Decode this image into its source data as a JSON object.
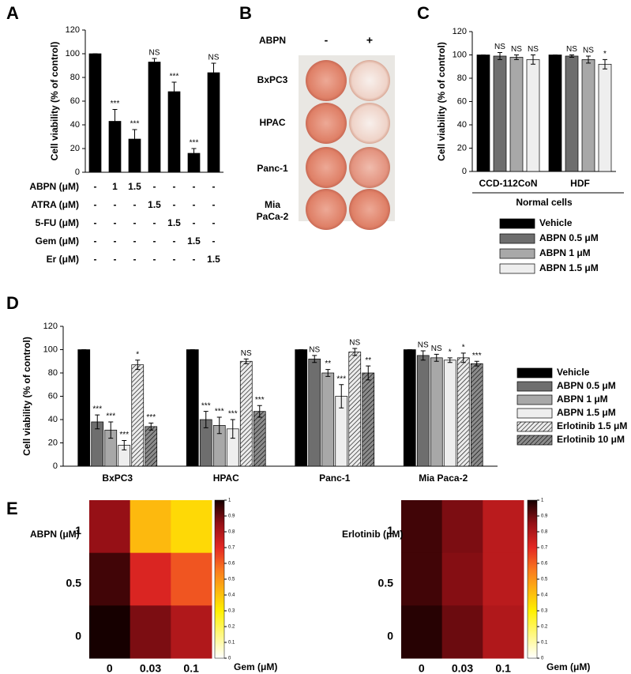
{
  "panel_labels": [
    "A",
    "B",
    "C",
    "D",
    "E"
  ],
  "panel_b": {
    "treatment_label": "ABPN",
    "columns": [
      "-",
      "+"
    ],
    "rows": [
      "BxPC3",
      "HPAC",
      "Panc-1",
      "Mia PaCa-2"
    ]
  },
  "chart_data": [
    {
      "type": "bar",
      "ylabel": "Cell viability (% of control)",
      "categories": [
        null,
        null,
        null,
        null,
        null,
        null,
        null
      ],
      "values": [
        100,
        43,
        28,
        93,
        68,
        16,
        84
      ],
      "errors": [
        0,
        10,
        8,
        3,
        8,
        4,
        8
      ],
      "annotations": [
        null,
        "***",
        "***",
        "NS",
        "***",
        "***",
        "NS"
      ],
      "color": "#000000",
      "ylim": [
        0,
        120
      ],
      "yticks": [
        0,
        20,
        40,
        60,
        80,
        100,
        120
      ],
      "treatments": [
        {
          "label": "ABPN (μM)",
          "doses": [
            "-",
            "1",
            "1.5",
            "-",
            "-",
            "-",
            "-"
          ]
        },
        {
          "label": "ATRA (μM)",
          "doses": [
            "-",
            "-",
            "-",
            "1.5",
            "-",
            "-",
            "-"
          ]
        },
        {
          "label": "5-FU (μM)",
          "doses": [
            "-",
            "-",
            "-",
            "-",
            "1.5",
            "-",
            "-"
          ]
        },
        {
          "label": "Gem (μM)",
          "doses": [
            "-",
            "-",
            "-",
            "-",
            "-",
            "1.5",
            "-"
          ]
        },
        {
          "label": "Er (μM)",
          "doses": [
            "-",
            "-",
            "-",
            "-",
            "-",
            "-",
            "1.5"
          ]
        }
      ]
    },
    {
      "type": "bar",
      "ylabel": "Cell viability (% of control)",
      "categories": [
        "CCD-112CoN",
        "HDF"
      ],
      "group_label": "Normal cells",
      "ylim": [
        0,
        120
      ],
      "yticks": [
        0,
        20,
        40,
        60,
        80,
        100,
        120
      ],
      "legend": "bottom",
      "series": [
        {
          "name": "Vehicle",
          "color": "#000000",
          "values": [
            100,
            100
          ],
          "errors": [
            0,
            0
          ],
          "annotations": [
            null,
            null
          ]
        },
        {
          "name": "ABPN 0.5 μM",
          "color": "#6e6e6e",
          "values": [
            99,
            99
          ],
          "errors": [
            3,
            1
          ],
          "annotations": [
            "NS",
            "NS"
          ]
        },
        {
          "name": "ABPN 1 μM",
          "color": "#a8a8a8",
          "values": [
            98,
            96
          ],
          "errors": [
            2,
            3
          ],
          "annotations": [
            "NS",
            "NS"
          ]
        },
        {
          "name": "ABPN 1.5 μM",
          "color": "#eeeeee",
          "values": [
            96,
            92
          ],
          "errors": [
            4,
            4
          ],
          "annotations": [
            "NS",
            "*"
          ]
        }
      ]
    },
    {
      "type": "bar",
      "ylabel": "Cell viability (% of control)",
      "categories": [
        "BxPC3",
        "HPAC",
        "Panc-1",
        "Mia Paca-2"
      ],
      "ylim": [
        0,
        120
      ],
      "yticks": [
        0,
        20,
        40,
        60,
        80,
        100,
        120
      ],
      "legend": "right",
      "series": [
        {
          "name": "Vehicle",
          "color": "#000000",
          "values": [
            100,
            100,
            100,
            100
          ],
          "errors": [
            0,
            0,
            0,
            0
          ],
          "annotations": [
            null,
            null,
            null,
            null
          ]
        },
        {
          "name": "ABPN 0.5 μM",
          "color": "#6e6e6e",
          "values": [
            38,
            40,
            92,
            95
          ],
          "errors": [
            6,
            7,
            3,
            4
          ],
          "annotations": [
            "***",
            "***",
            "NS",
            "NS"
          ]
        },
        {
          "name": "ABPN 1 μM",
          "color": "#a8a8a8",
          "values": [
            31,
            35,
            80,
            93
          ],
          "errors": [
            7,
            7,
            3,
            3
          ],
          "annotations": [
            "***",
            "***",
            "**",
            "NS"
          ]
        },
        {
          "name": "ABPN 1.5 μM",
          "color": "#eeeeee",
          "values": [
            18,
            32,
            60,
            91
          ],
          "errors": [
            4,
            8,
            10,
            2
          ],
          "annotations": [
            "***",
            "***",
            "***",
            "*"
          ]
        },
        {
          "name": "Erlotinib 1.5 μM",
          "color": "#ececec",
          "pattern": "hatch",
          "values": [
            87,
            90,
            98,
            93
          ],
          "errors": [
            4,
            2,
            3,
            4
          ],
          "annotations": [
            "*",
            "NS",
            "NS",
            "*"
          ]
        },
        {
          "name": "Erlotinib 10 μM",
          "color": "#8c8c8c",
          "pattern": "hatch",
          "values": [
            34,
            47,
            80,
            88
          ],
          "errors": [
            3,
            5,
            6,
            2
          ],
          "annotations": [
            "***",
            "***",
            "**",
            "***"
          ]
        }
      ]
    },
    {
      "type": "heatmap",
      "ylabel": "ABPN (μM)",
      "xlabel": "Gem (μM)",
      "x": [
        "0",
        "0.03",
        "0.1"
      ],
      "y": [
        "1",
        "0.5",
        "0"
      ],
      "values": [
        [
          0.85,
          0.42,
          0.35
        ],
        [
          0.95,
          0.72,
          0.62
        ],
        [
          1.0,
          0.88,
          0.8
        ]
      ],
      "colormap": "hot_r",
      "colorbar_lim": [
        0,
        1
      ],
      "colorbar_ticks": [
        0,
        0.1,
        0.2,
        0.3,
        0.4,
        0.5,
        0.6,
        0.7,
        0.8,
        0.9,
        1
      ]
    },
    {
      "type": "heatmap",
      "ylabel": "Erlotinib (μM)",
      "xlabel": "Gem (μM)",
      "x": [
        "0",
        "0.03",
        "0.1"
      ],
      "y": [
        "1",
        "0.5",
        "0"
      ],
      "values": [
        [
          0.95,
          0.88,
          0.78
        ],
        [
          0.95,
          0.87,
          0.78
        ],
        [
          0.98,
          0.9,
          0.8
        ]
      ],
      "colormap": "hot_r",
      "colorbar_lim": [
        0,
        1
      ],
      "colorbar_ticks": [
        0,
        0.1,
        0.2,
        0.3,
        0.4,
        0.5,
        0.6,
        0.7,
        0.8,
        0.9,
        1
      ]
    }
  ]
}
